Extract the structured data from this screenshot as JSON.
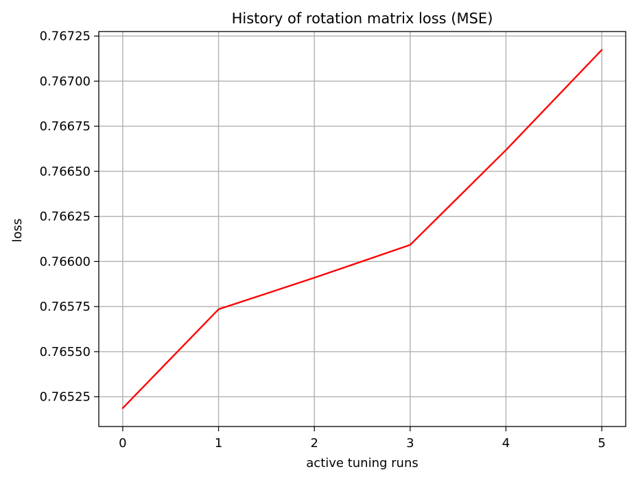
{
  "chart_data": {
    "type": "line",
    "title": "History of rotation matrix loss (MSE)",
    "xlabel": "active tuning runs",
    "ylabel": "loss",
    "x": [
      0,
      1,
      2,
      3,
      4,
      5
    ],
    "series": [
      {
        "values": [
          0.765187,
          0.765735,
          0.76591,
          0.766092,
          0.766618,
          0.767173
        ],
        "color": "#ff0000"
      }
    ],
    "xlim": [
      -0.25,
      5.25
    ],
    "ylim": [
      0.765085,
      0.767275
    ],
    "xticks": [
      "0",
      "1",
      "2",
      "3",
      "4",
      "5"
    ],
    "xtick_values": [
      0,
      1,
      2,
      3,
      4,
      5
    ],
    "yticks": [
      "0.76525",
      "0.76550",
      "0.76575",
      "0.76600",
      "0.76625",
      "0.76650",
      "0.76675",
      "0.76700",
      "0.76725"
    ],
    "ytick_values": [
      0.76525,
      0.7655,
      0.76575,
      0.766,
      0.76625,
      0.7665,
      0.76675,
      0.767,
      0.76725
    ],
    "grid": true,
    "legend": "none"
  }
}
